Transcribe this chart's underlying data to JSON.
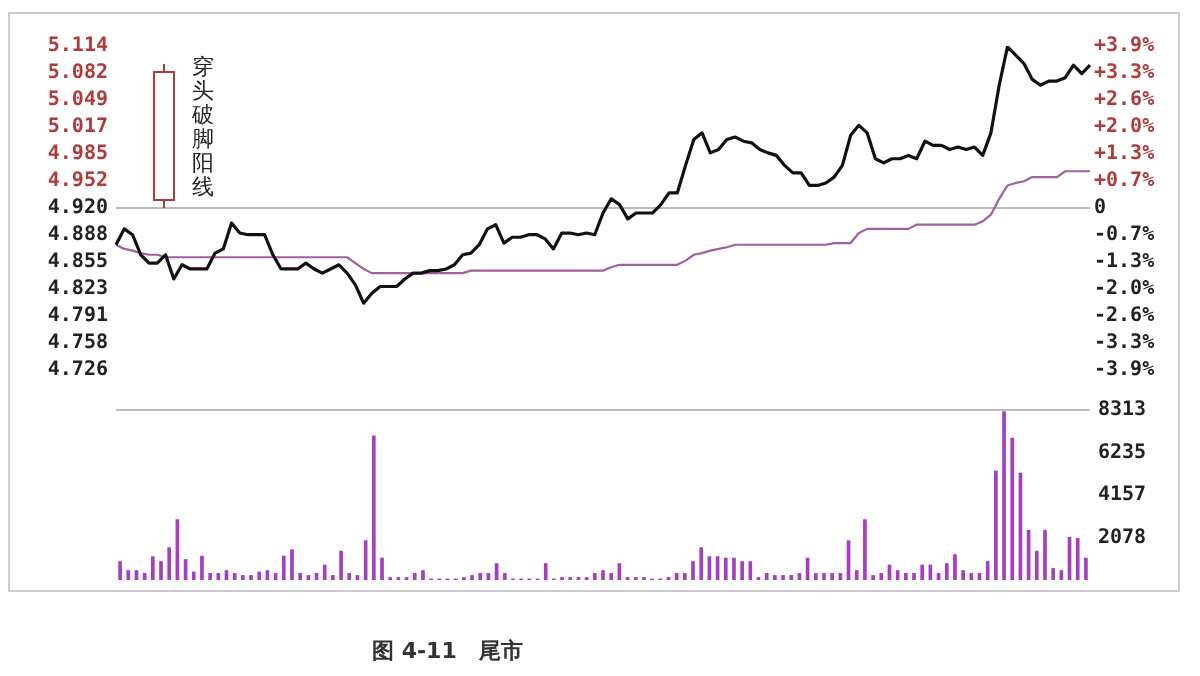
{
  "chart_data": [
    {
      "type": "line",
      "annotations": [
        "穿头破脚阳线"
      ],
      "categories": [
        null,
        null,
        null,
        null,
        null,
        null,
        null,
        null,
        null,
        null,
        null,
        null,
        null,
        null,
        null,
        null,
        null,
        null,
        null,
        null,
        null,
        null,
        null,
        null,
        null,
        null,
        null,
        null,
        null,
        null,
        null,
        null,
        null,
        null,
        null,
        null,
        null,
        null,
        null,
        null,
        null,
        null,
        null,
        null,
        null,
        null,
        null,
        null,
        null,
        null,
        null,
        null,
        null,
        null,
        null,
        null,
        null,
        null,
        null,
        null,
        null,
        null,
        null,
        null,
        null,
        null,
        null,
        null,
        null,
        null,
        null,
        null,
        null,
        null,
        null,
        null,
        null,
        null,
        null,
        null,
        null,
        null,
        null,
        null,
        null,
        null,
        null,
        null,
        null,
        null,
        null,
        null,
        null,
        null,
        null,
        null,
        null,
        null,
        null,
        null,
        null,
        null,
        null,
        null,
        null,
        null,
        null,
        null,
        null,
        null,
        null,
        null,
        null,
        null,
        null,
        null,
        null,
        null,
        null
      ],
      "series": [
        {
          "color": "#111111",
          "values": [
            4.876,
            4.895,
            4.888,
            4.864,
            4.854,
            4.854,
            4.864,
            4.835,
            4.852,
            4.847,
            4.847,
            4.847,
            4.866,
            4.871,
            4.902,
            4.89,
            4.888,
            4.888,
            4.888,
            4.864,
            4.847,
            4.847,
            4.847,
            4.854,
            4.847,
            4.842,
            4.847,
            4.852,
            4.842,
            4.828,
            4.806,
            4.818,
            4.826,
            4.826,
            4.826,
            4.835,
            4.842,
            4.842,
            4.845,
            4.845,
            4.847,
            4.852,
            4.864,
            4.866,
            4.876,
            4.895,
            4.9,
            4.878,
            4.885,
            4.885,
            4.888,
            4.888,
            4.883,
            4.871,
            4.89,
            4.89,
            4.888,
            4.89,
            4.888,
            4.914,
            4.931,
            4.924,
            4.907,
            4.914,
            4.914,
            4.914,
            4.924,
            4.938,
            4.938,
            4.971,
            5.002,
            5.01,
            4.986,
            4.99,
            5.002,
            5.005,
            5.0,
            4.998,
            4.99,
            4.986,
            4.983,
            4.971,
            4.962,
            4.962,
            4.947,
            4.947,
            4.95,
            4.957,
            4.971,
            5.007,
            5.019,
            5.01,
            4.979,
            4.974,
            4.979,
            4.979,
            4.983,
            4.979,
            5.0,
            4.995,
            4.995,
            4.99,
            4.993,
            4.99,
            4.993,
            4.983,
            5.01,
            5.067,
            5.113,
            5.103,
            5.093,
            5.074,
            5.067,
            5.072,
            5.072,
            5.076,
            5.091,
            5.081,
            5.091
          ]
        },
        {
          "color": "#a0609f",
          "values": [
            4.876,
            4.871,
            4.869,
            4.866,
            4.864,
            4.864,
            4.861,
            4.861,
            4.861,
            4.861,
            4.861,
            4.861,
            4.861,
            4.861,
            4.861,
            4.861,
            4.861,
            4.861,
            4.861,
            4.861,
            4.861,
            4.861,
            4.861,
            4.861,
            4.861,
            4.861,
            4.861,
            4.861,
            4.861,
            4.854,
            4.847,
            4.842,
            4.842,
            4.842,
            4.842,
            4.842,
            4.842,
            4.842,
            4.842,
            4.842,
            4.842,
            4.842,
            4.842,
            4.845,
            4.845,
            4.845,
            4.845,
            4.845,
            4.845,
            4.845,
            4.845,
            4.845,
            4.845,
            4.845,
            4.845,
            4.845,
            4.845,
            4.845,
            4.845,
            4.845,
            4.849,
            4.852,
            4.852,
            4.852,
            4.852,
            4.852,
            4.852,
            4.852,
            4.852,
            4.857,
            4.864,
            4.866,
            4.869,
            4.871,
            4.873,
            4.876,
            4.876,
            4.876,
            4.876,
            4.876,
            4.876,
            4.876,
            4.876,
            4.876,
            4.876,
            4.876,
            4.876,
            4.878,
            4.878,
            4.878,
            4.89,
            4.895,
            4.895,
            4.895,
            4.895,
            4.895,
            4.895,
            4.9,
            4.9,
            4.9,
            4.9,
            4.9,
            4.9,
            4.9,
            4.9,
            4.904,
            4.912,
            4.931,
            4.947,
            4.95,
            4.952,
            4.957,
            4.957,
            4.957,
            4.957,
            4.964,
            4.964,
            4.964,
            4.964
          ]
        }
      ],
      "ylim": [
        4.726,
        5.114
      ],
      "yticks": [
        4.726,
        4.758,
        4.791,
        4.823,
        4.855,
        4.888,
        {
          "value": 4.92,
          "label": "4.920"
        },
        4.952,
        4.985,
        5.017,
        5.049,
        5.082,
        5.114
      ],
      "y2lim": [
        -3.943,
        3.943
      ],
      "y2ticks": [
        {
          "value": -3.943,
          "label": "-3.9%"
        },
        {
          "value": -3.286,
          "label": "-3.3%"
        },
        {
          "value": -2.629,
          "label": "-2.6%"
        },
        {
          "value": -1.972,
          "label": "-2.0%"
        },
        {
          "value": -1.314,
          "label": "-1.3%"
        },
        {
          "value": -0.657,
          "label": "-0.7%"
        },
        {
          "value": 0,
          "label": "0"
        },
        {
          "value": 0.657,
          "label": "+0.7%"
        },
        {
          "value": 1.314,
          "label": "+1.3%"
        },
        {
          "value": 1.972,
          "label": "+2.0%"
        },
        {
          "value": 2.629,
          "label": "+2.6%"
        },
        {
          "value": 3.286,
          "label": "+3.3%"
        },
        {
          "value": 3.943,
          "label": "+3.9%"
        }
      ],
      "ref_lines": [
        {
          "axis": "y",
          "value": 4.92,
          "color": "#bbbbbb"
        }
      ]
    },
    {
      "type": "bar",
      "annotations": [
        "图 4-11　尾市"
      ],
      "color": "#a43fbf",
      "categories": [
        null,
        null,
        null,
        null,
        null,
        null,
        null,
        null,
        null,
        null,
        null,
        null,
        null,
        null,
        null,
        null,
        null,
        null,
        null,
        null,
        null,
        null,
        null,
        null,
        null,
        null,
        null,
        null,
        null,
        null,
        null,
        null,
        null,
        null,
        null,
        null,
        null,
        null,
        null,
        null,
        null,
        null,
        null,
        null,
        null,
        null,
        null,
        null,
        null,
        null,
        null,
        null,
        null,
        null,
        null,
        null,
        null,
        null,
        null,
        null,
        null,
        null,
        null,
        null,
        null,
        null,
        null,
        null,
        null,
        null,
        null,
        null,
        null,
        null,
        null,
        null,
        null,
        null,
        null,
        null,
        null,
        null,
        null,
        null,
        null,
        null,
        null,
        null,
        null,
        null,
        null,
        null,
        null,
        null,
        null,
        null,
        null,
        null,
        null,
        null,
        null,
        null,
        null,
        null,
        null,
        null,
        null,
        null,
        null,
        null,
        null,
        null,
        null,
        null,
        null,
        null,
        null,
        null,
        null
      ],
      "values": [
        920,
        480,
        480,
        340,
        1160,
        920,
        1600,
        2970,
        1020,
        410,
        1190,
        340,
        340,
        480,
        340,
        240,
        240,
        410,
        480,
        340,
        1190,
        1500,
        340,
        240,
        340,
        750,
        240,
        1430,
        340,
        240,
        1940,
        7060,
        1090,
        140,
        140,
        140,
        340,
        480,
        70,
        70,
        70,
        70,
        140,
        240,
        340,
        340,
        820,
        340,
        70,
        70,
        70,
        70,
        820,
        70,
        140,
        140,
        140,
        140,
        340,
        480,
        340,
        820,
        140,
        140,
        140,
        70,
        70,
        140,
        340,
        340,
        920,
        1600,
        1160,
        1160,
        1090,
        1090,
        920,
        920,
        140,
        340,
        240,
        240,
        240,
        340,
        1090,
        340,
        340,
        340,
        340,
        1940,
        480,
        2970,
        240,
        340,
        750,
        480,
        340,
        340,
        750,
        750,
        340,
        820,
        1260,
        480,
        340,
        340,
        920,
        5350,
        8250,
        6960,
        5250,
        2450,
        1430,
        2450,
        580,
        480,
        2110,
        2050,
        1090
      ],
      "ylim": [
        0,
        8313
      ],
      "yticks": [
        2078,
        4157,
        6235,
        8313
      ],
      "ref_lines": [
        {
          "axis": "y",
          "value": 8313,
          "color": "#bbbbbb"
        }
      ]
    }
  ]
}
